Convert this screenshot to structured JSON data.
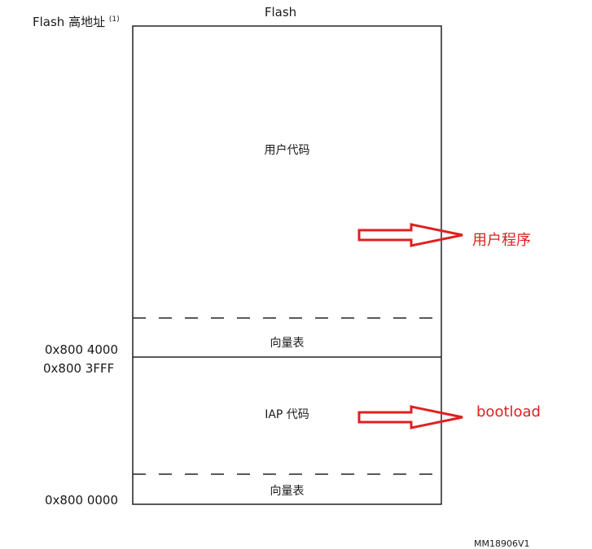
{
  "header": {
    "flash_title": "Flash",
    "high_address": "Flash 高地址",
    "footnote": "(1)"
  },
  "regions": {
    "user_code": "用户代码",
    "vector_table_upper": "向量表",
    "iap_code": "IAP 代码",
    "vector_table_lower": "向量表"
  },
  "addresses": {
    "user_start": "0x800 4000",
    "iap_end": "0x800 3FFF",
    "base": "0x800 0000"
  },
  "annotations": {
    "user_program": "用户程序",
    "bootload": "bootload"
  },
  "footer": {
    "figure_id": "MM18906V1"
  },
  "colors": {
    "arrow": "#e02020",
    "annotation_text": "#e02020",
    "outline": "#222222"
  }
}
